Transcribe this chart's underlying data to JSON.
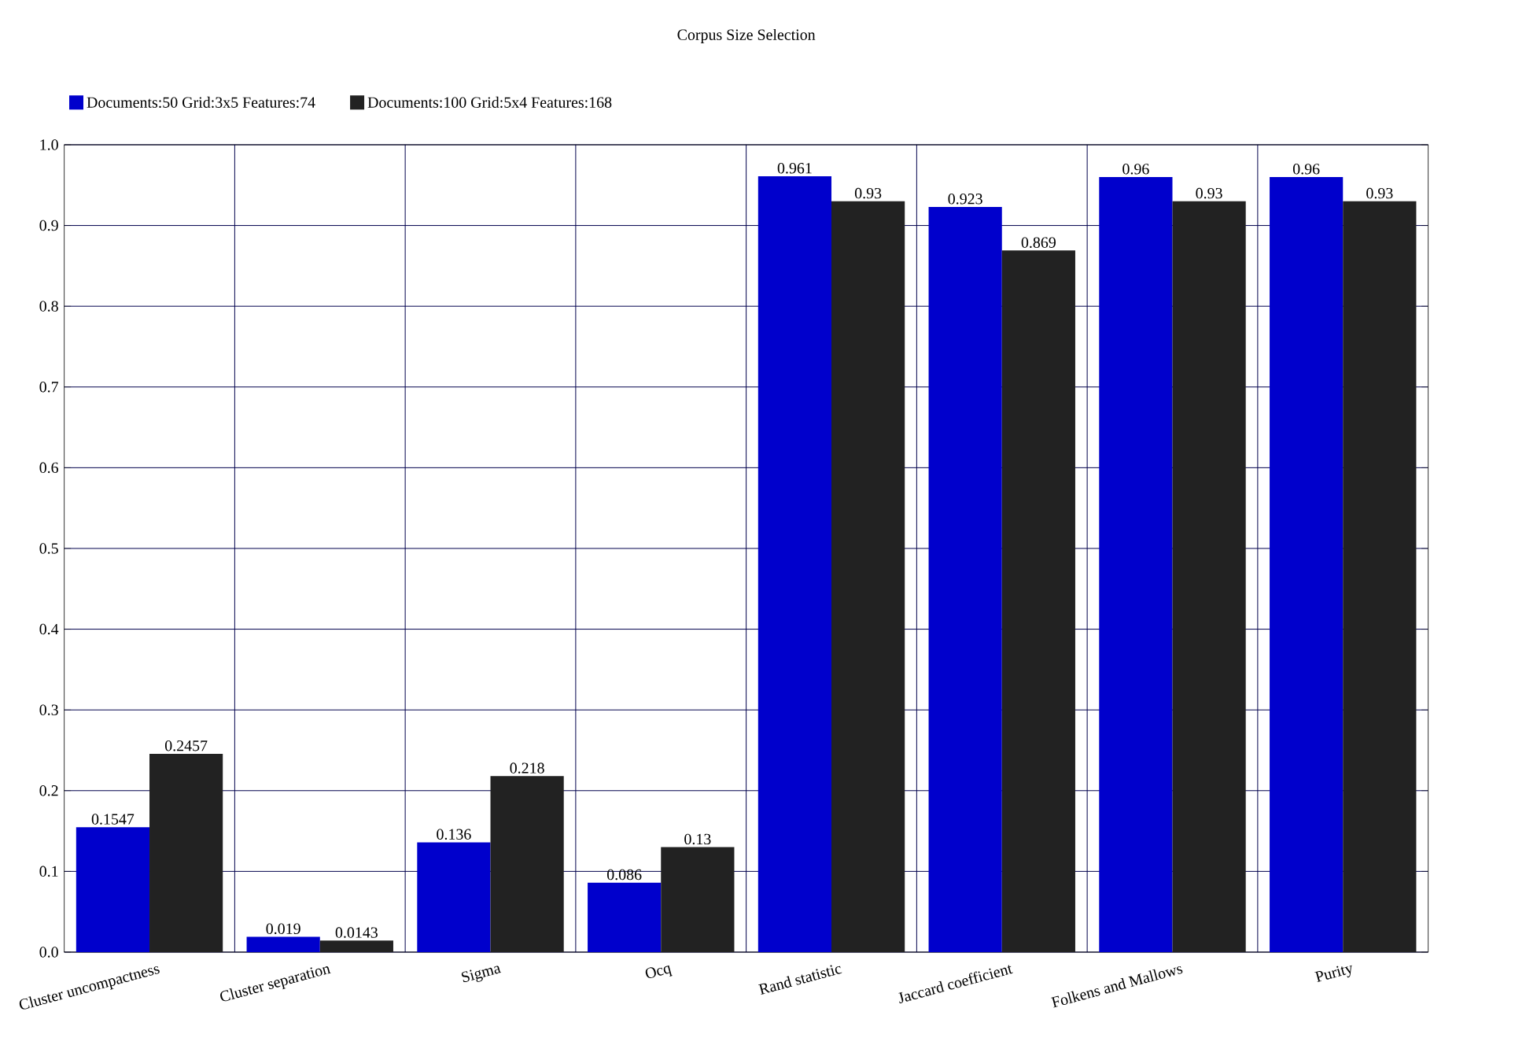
{
  "chart_data": {
    "type": "bar",
    "title": "Corpus Size Selection",
    "categories": [
      "Cluster uncompactness",
      "Cluster separation",
      "Sigma",
      "Ocq",
      "Rand statistic",
      "Jaccard coefficient",
      "Folkens and Mallows",
      "Purity"
    ],
    "series": [
      {
        "name": "Documents:50 Grid:3x5 Features:74",
        "color": "#0000cc",
        "values": [
          0.1547,
          0.019,
          0.136,
          0.086,
          0.961,
          0.923,
          0.96,
          0.96
        ],
        "value_labels": [
          "0.1547",
          "0.019",
          "0.136",
          "0.086",
          "0.961",
          "0.923",
          "0.96",
          "0.96"
        ]
      },
      {
        "name": "Documents:100 Grid:5x4 Features:168",
        "color": "#222222",
        "values": [
          0.2457,
          0.0143,
          0.218,
          0.13,
          0.93,
          0.869,
          0.93,
          0.93
        ],
        "value_labels": [
          "0.2457",
          "0.0143",
          "0.218",
          "0.13",
          "0.93",
          "0.869",
          "0.93",
          "0.93"
        ]
      }
    ],
    "ylim": [
      0,
      1
    ],
    "yticks": [
      {
        "value": 0,
        "label": "0.0"
      },
      0.1,
      0.2,
      0.3,
      0.4,
      0.5,
      0.6,
      0.7,
      0.8,
      0.9,
      {
        "value": 1,
        "label": "1.0"
      }
    ],
    "grid": true,
    "legend": "top left"
  }
}
